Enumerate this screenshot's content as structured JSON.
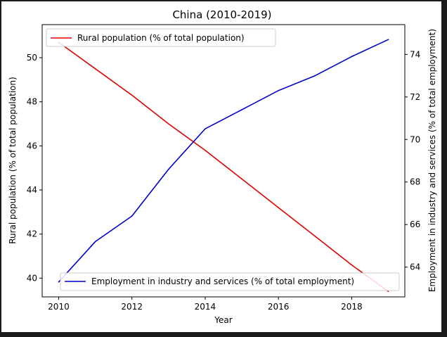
{
  "chart_data": {
    "type": "line",
    "title": "China (2010-2019)",
    "xlabel": "Year",
    "ylabel_left": "Rural population (% of total population)",
    "ylabel_right": "Employment in industry and services (% of total employment)",
    "xlim": [
      2009.55,
      2019.45
    ],
    "ylim_left": [
      39.15,
      51.5
    ],
    "ylim_right": [
      62.6,
      75.4
    ],
    "x_ticks": [
      2010,
      2012,
      2014,
      2016,
      2018
    ],
    "y_ticks_left": [
      40,
      42,
      44,
      46,
      48,
      50
    ],
    "y_ticks_right": [
      64,
      66,
      68,
      70,
      72,
      74
    ],
    "grid": false,
    "legend": [
      {
        "name": "Rural population (% of total population)",
        "axis": "left",
        "placement": "upper-left"
      },
      {
        "name": "Employment in industry and services (% of total employment)",
        "axis": "right",
        "placement": "lower-right"
      }
    ],
    "series": [
      {
        "name": "Rural population (% of total population)",
        "axis": "left",
        "color": "#e00000",
        "x": [
          2010,
          2011,
          2012,
          2013,
          2014,
          2015,
          2016,
          2017,
          2018,
          2019
        ],
        "values": [
          50.7,
          49.5,
          48.3,
          47.0,
          45.8,
          44.5,
          43.2,
          41.9,
          40.6,
          39.4
        ]
      },
      {
        "name": "Employment in industry and services (% of total employment)",
        "axis": "right",
        "color": "#0000cc",
        "x": [
          2010,
          2011,
          2012,
          2013,
          2014,
          2015,
          2016,
          2017,
          2018,
          2019
        ],
        "values": [
          63.3,
          65.2,
          66.4,
          68.6,
          70.5,
          71.4,
          72.3,
          73.0,
          73.9,
          74.7
        ]
      }
    ]
  }
}
